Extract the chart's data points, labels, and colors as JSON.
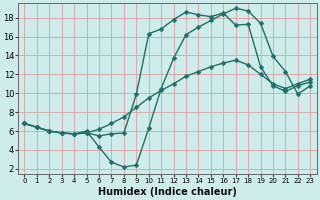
{
  "xlabel": "Humidex (Indice chaleur)",
  "bg_color": "#ceecea",
  "line_color": "#1e7068",
  "grid_color": "#dda0a0",
  "xlim": [
    -0.5,
    23.5
  ],
  "ylim": [
    1.5,
    19.5
  ],
  "xticks": [
    0,
    1,
    2,
    3,
    4,
    5,
    6,
    7,
    8,
    9,
    10,
    11,
    12,
    13,
    14,
    15,
    16,
    17,
    18,
    19,
    20,
    21,
    22,
    23
  ],
  "yticks": [
    2,
    4,
    6,
    8,
    10,
    12,
    14,
    16,
    18
  ],
  "line1_x": [
    0,
    1,
    2,
    3,
    4,
    5,
    6,
    7,
    8,
    9,
    10,
    11,
    12,
    13,
    14,
    15,
    16,
    17,
    18,
    19,
    20,
    21,
    22,
    23
  ],
  "line1_y": [
    6.8,
    6.4,
    6.0,
    5.8,
    5.7,
    6.0,
    4.3,
    2.7,
    2.2,
    2.4,
    6.3,
    10.5,
    13.7,
    16.2,
    17.0,
    17.7,
    18.4,
    19.0,
    18.7,
    17.4,
    13.9,
    12.3,
    9.9,
    10.8
  ],
  "line2_x": [
    0,
    1,
    2,
    3,
    4,
    5,
    6,
    7,
    8,
    9,
    10,
    11,
    12,
    13,
    14,
    15,
    16,
    17,
    18,
    19,
    20,
    21,
    22,
    23
  ],
  "line2_y": [
    6.8,
    6.4,
    6.0,
    5.8,
    5.7,
    5.8,
    6.2,
    6.8,
    7.5,
    8.5,
    9.5,
    10.3,
    11.0,
    11.8,
    12.3,
    12.8,
    13.2,
    13.5,
    13.0,
    12.0,
    11.0,
    10.5,
    11.0,
    11.5
  ],
  "line3_x": [
    0,
    1,
    2,
    3,
    4,
    5,
    6,
    7,
    8,
    9,
    10,
    11,
    12,
    13,
    14,
    15,
    16,
    17,
    18,
    19,
    20,
    21,
    22,
    23
  ],
  "line3_y": [
    6.8,
    6.4,
    6.0,
    5.8,
    5.7,
    5.8,
    5.5,
    5.7,
    5.8,
    9.9,
    16.3,
    16.8,
    17.8,
    18.6,
    18.3,
    18.1,
    18.5,
    17.2,
    17.3,
    12.8,
    10.8,
    10.2,
    10.8,
    11.2
  ],
  "marker_size": 2.5,
  "line_width": 1.0
}
